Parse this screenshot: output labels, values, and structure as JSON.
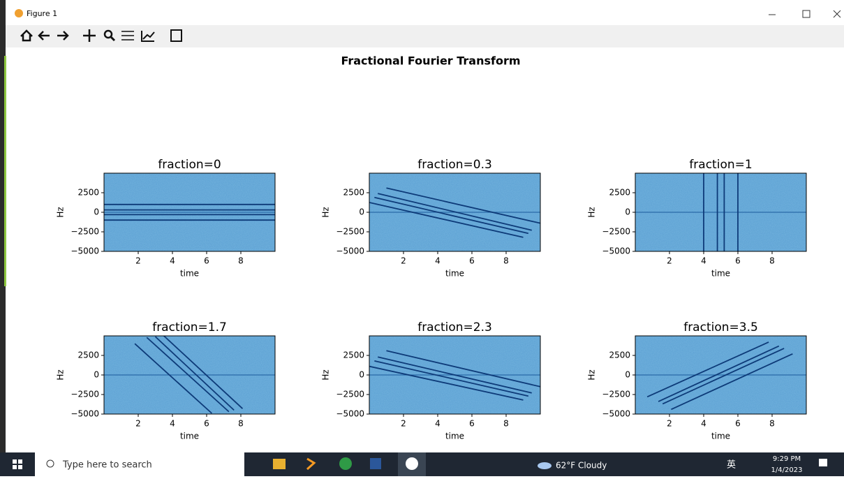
{
  "window": {
    "title": "Figure 1"
  },
  "figure_title": "Fractional Fourier Transform",
  "chart_data": [
    {
      "type": "image",
      "title": "fraction=0",
      "xlabel": "time",
      "ylabel": "Hz",
      "xlim": [
        0,
        10
      ],
      "ylim": [
        -5000,
        5000
      ],
      "xticks": [
        2,
        4,
        6,
        8
      ],
      "yticks": [
        2500,
        0,
        {
          "value": -2500,
          "label": "−2500"
        },
        {
          "value": -5000,
          "label": "−5000"
        }
      ],
      "lines": [
        {
          "x": [
            0,
            10
          ],
          "y": [
            1000,
            1000
          ]
        },
        {
          "x": [
            0,
            10
          ],
          "y": [
            300,
            300
          ]
        },
        {
          "x": [
            0,
            10
          ],
          "y": [
            -300,
            -300
          ]
        },
        {
          "x": [
            0,
            10
          ],
          "y": [
            -1000,
            -1000
          ]
        }
      ]
    },
    {
      "type": "image",
      "title": "fraction=0.3",
      "xlabel": "time",
      "ylabel": "Hz",
      "xlim": [
        0,
        10
      ],
      "ylim": [
        -5000,
        5000
      ],
      "xticks": [
        2,
        4,
        6,
        8
      ],
      "yticks": [
        2500,
        0,
        {
          "value": -2500,
          "label": "−2500"
        },
        {
          "value": -5000,
          "label": "−5000"
        }
      ],
      "lines": [
        {
          "x": [
            1,
            10
          ],
          "y": [
            3100,
            -1400
          ]
        },
        {
          "x": [
            0.5,
            9.5
          ],
          "y": [
            2400,
            -2300
          ]
        },
        {
          "x": [
            0.3,
            9.3
          ],
          "y": [
            1900,
            -2700
          ]
        },
        {
          "x": [
            0,
            9
          ],
          "y": [
            1250,
            -3200
          ]
        }
      ]
    },
    {
      "type": "image",
      "title": "fraction=1",
      "xlabel": "time",
      "ylabel": "Hz",
      "xlim": [
        0,
        10
      ],
      "ylim": [
        -5000,
        5000
      ],
      "xticks": [
        2,
        4,
        6,
        8
      ],
      "yticks": [
        2500,
        0,
        {
          "value": -2500,
          "label": "−2500"
        },
        {
          "value": -5000,
          "label": "−5000"
        }
      ],
      "lines": [
        {
          "x": [
            4,
            4
          ],
          "y": [
            5000,
            -5000
          ]
        },
        {
          "x": [
            4.8,
            4.8
          ],
          "y": [
            5000,
            -5000
          ]
        },
        {
          "x": [
            5.2,
            5.2
          ],
          "y": [
            5000,
            -5000
          ]
        },
        {
          "x": [
            6,
            6
          ],
          "y": [
            5000,
            -5000
          ]
        }
      ]
    },
    {
      "type": "image",
      "title": "fraction=1.7",
      "xlabel": "time",
      "ylabel": "Hz",
      "xlim": [
        0,
        10
      ],
      "ylim": [
        -5000,
        5000
      ],
      "xticks": [
        2,
        4,
        6,
        8
      ],
      "yticks": [
        2500,
        0,
        {
          "value": -2500,
          "label": "−2500"
        },
        {
          "value": -5000,
          "label": "−5000"
        }
      ],
      "lines": [
        {
          "x": [
            1.8,
            6.3
          ],
          "y": [
            4000,
            -4900
          ]
        },
        {
          "x": [
            2.5,
            7.3
          ],
          "y": [
            4800,
            -4700
          ]
        },
        {
          "x": [
            3,
            7.6
          ],
          "y": [
            4900,
            -4500
          ]
        },
        {
          "x": [
            3.5,
            8.1
          ],
          "y": [
            5000,
            -4300
          ]
        }
      ]
    },
    {
      "type": "image",
      "title": "fraction=2.3",
      "xlabel": "time",
      "ylabel": "Hz",
      "xlim": [
        0,
        10
      ],
      "ylim": [
        -5000,
        5000
      ],
      "xticks": [
        2,
        4,
        6,
        8
      ],
      "yticks": [
        2500,
        0,
        {
          "value": -2500,
          "label": "−2500"
        },
        {
          "value": -5000,
          "label": "−5000"
        }
      ],
      "lines": [
        {
          "x": [
            1,
            10
          ],
          "y": [
            3100,
            -1500
          ]
        },
        {
          "x": [
            0.5,
            9.5
          ],
          "y": [
            2300,
            -2300
          ]
        },
        {
          "x": [
            0.3,
            9.3
          ],
          "y": [
            1800,
            -2700
          ]
        },
        {
          "x": [
            0,
            9
          ],
          "y": [
            1100,
            -3200
          ]
        }
      ]
    },
    {
      "type": "image",
      "title": "fraction=3.5",
      "xlabel": "time",
      "ylabel": "Hz",
      "xlim": [
        0,
        10
      ],
      "ylim": [
        -5000,
        5000
      ],
      "xticks": [
        2,
        4,
        6,
        8
      ],
      "yticks": [
        2500,
        0,
        {
          "value": -2500,
          "label": "−2500"
        },
        {
          "value": -5000,
          "label": "−5000"
        }
      ],
      "lines": [
        {
          "x": [
            0.7,
            7.8
          ],
          "y": [
            -2800,
            4200
          ]
        },
        {
          "x": [
            1.35,
            8.4
          ],
          "y": [
            -3400,
            3700
          ]
        },
        {
          "x": [
            1.6,
            8.7
          ],
          "y": [
            -3700,
            3400
          ]
        },
        {
          "x": [
            2.1,
            9.2
          ],
          "y": [
            -4400,
            2700
          ]
        }
      ]
    }
  ],
  "taskbar": {
    "search": "Type here to search",
    "weather": "62°F Cloudy",
    "ime": "英",
    "time": "9:29 PM",
    "date": "1/4/2023"
  }
}
